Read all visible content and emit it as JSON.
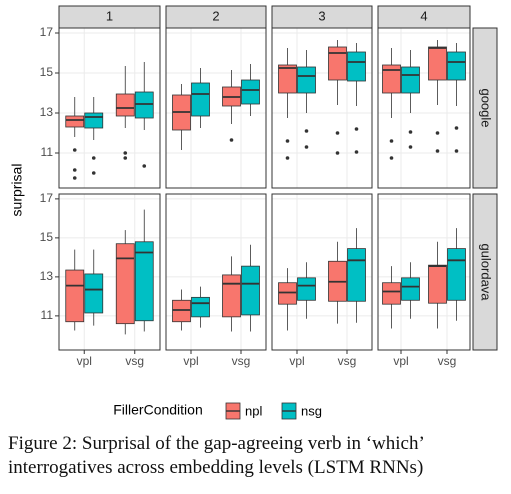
{
  "chart_data": {
    "type": "box",
    "y_label": "surprisal",
    "legend_title": "FillerCondition",
    "caption": "Figure 2: Surprisal of the gap-agreeing verb in ‘which’ interrogatives across embedding levels (LSTM RNNs)",
    "categories": [
      "vpl",
      "vsg"
    ],
    "facet_columns": [
      "1",
      "2",
      "3",
      "4"
    ],
    "facet_rows": [
      "google",
      "gulordava"
    ],
    "ylim": [
      9.25,
      17.25
    ],
    "yticks": [
      11,
      13,
      15,
      17
    ],
    "grid": true,
    "series": [
      {
        "name": "npl",
        "color": "#f8766d",
        "values": [
          [
            [
              {
                "min": 11.8,
                "q1": 12.3,
                "median": 12.65,
                "q3": 12.85,
                "max": 13.8,
                "outliers": [
                  11.15,
                  10.15,
                  9.75
                ]
              },
              {
                "min": 12.25,
                "q1": 12.85,
                "median": 13.25,
                "q3": 13.95,
                "max": 15.35,
                "outliers": [
                  11.0,
                  10.75
                ]
              }
            ],
            [
              {
                "min": 11.15,
                "q1": 12.15,
                "median": 13.05,
                "q3": 13.9,
                "max": 14.45,
                "outliers": []
              },
              {
                "min": 12.45,
                "q1": 13.35,
                "median": 13.8,
                "q3": 14.3,
                "max": 15.15,
                "outliers": [
                  11.65
                ]
              }
            ],
            [
              {
                "min": 12.75,
                "q1": 14.0,
                "median": 15.25,
                "q3": 15.4,
                "max": 16.25,
                "outliers": [
                  11.6,
                  10.75
                ]
              },
              {
                "min": 13.4,
                "q1": 14.65,
                "median": 16.0,
                "q3": 16.3,
                "max": 16.65,
                "outliers": [
                  12.0,
                  11.0
                ]
              }
            ],
            [
              {
                "min": 12.75,
                "q1": 14.0,
                "median": 15.15,
                "q3": 15.4,
                "max": 16.25,
                "outliers": [
                  11.6,
                  10.75
                ]
              },
              {
                "min": 13.4,
                "q1": 14.65,
                "median": 16.25,
                "q3": 16.3,
                "max": 16.65,
                "outliers": [
                  12.0,
                  11.1
                ]
              }
            ]
          ],
          [
            [
              {
                "min": 10.25,
                "q1": 10.7,
                "median": 12.55,
                "q3": 13.35,
                "max": 14.4,
                "outliers": []
              },
              {
                "min": 10.05,
                "q1": 10.6,
                "median": 13.95,
                "q3": 14.7,
                "max": 15.4,
                "outliers": []
              }
            ],
            [
              {
                "min": 10.25,
                "q1": 10.7,
                "median": 11.3,
                "q3": 11.8,
                "max": 12.35,
                "outliers": []
              },
              {
                "min": 10.2,
                "q1": 10.95,
                "median": 12.65,
                "q3": 13.1,
                "max": 14.05,
                "outliers": []
              }
            ],
            [
              {
                "min": 10.25,
                "q1": 11.6,
                "median": 12.2,
                "q3": 12.7,
                "max": 13.45,
                "outliers": []
              },
              {
                "min": 10.6,
                "q1": 11.75,
                "median": 12.75,
                "q3": 13.8,
                "max": 14.8,
                "outliers": []
              }
            ],
            [
              {
                "min": 10.35,
                "q1": 11.6,
                "median": 12.25,
                "q3": 12.7,
                "max": 13.55,
                "outliers": []
              },
              {
                "min": 10.35,
                "q1": 11.65,
                "median": 13.55,
                "q3": 13.6,
                "max": 14.8,
                "outliers": []
              }
            ]
          ]
        ]
      },
      {
        "name": "nsg",
        "color": "#00bfc4",
        "values": [
          [
            [
              {
                "min": 11.65,
                "q1": 12.25,
                "median": 12.8,
                "q3": 13.0,
                "max": 13.8,
                "outliers": [
                  10.75,
                  10.0
                ]
              },
              {
                "min": 12.15,
                "q1": 12.75,
                "median": 13.45,
                "q3": 14.05,
                "max": 15.55,
                "outliers": [
                  10.35
                ]
              }
            ],
            [
              {
                "min": 12.25,
                "q1": 12.85,
                "median": 13.95,
                "q3": 14.5,
                "max": 15.25,
                "outliers": []
              },
              {
                "min": 12.85,
                "q1": 13.45,
                "median": 14.15,
                "q3": 14.65,
                "max": 15.45,
                "outliers": []
              }
            ],
            [
              {
                "min": 13.0,
                "q1": 14.0,
                "median": 14.85,
                "q3": 15.3,
                "max": 16.15,
                "outliers": [
                  12.1,
                  11.3
                ]
              },
              {
                "min": 13.35,
                "q1": 14.6,
                "median": 15.55,
                "q3": 16.05,
                "max": 16.5,
                "outliers": [
                  12.2,
                  11.05
                ]
              }
            ],
            [
              {
                "min": 13.0,
                "q1": 14.0,
                "median": 14.9,
                "q3": 15.3,
                "max": 16.15,
                "outliers": [
                  12.05,
                  11.3
                ]
              },
              {
                "min": 13.35,
                "q1": 14.65,
                "median": 15.55,
                "q3": 16.05,
                "max": 16.5,
                "outliers": [
                  12.25,
                  11.1
                ]
              }
            ]
          ],
          [
            [
              {
                "min": 10.5,
                "q1": 11.15,
                "median": 12.35,
                "q3": 13.15,
                "max": 14.4,
                "outliers": []
              },
              {
                "min": 10.2,
                "q1": 10.75,
                "median": 14.25,
                "q3": 14.8,
                "max": 16.45,
                "outliers": []
              }
            ],
            [
              {
                "min": 10.4,
                "q1": 10.95,
                "median": 11.65,
                "q3": 11.95,
                "max": 12.5,
                "outliers": []
              },
              {
                "min": 10.2,
                "q1": 11.05,
                "median": 12.65,
                "q3": 13.55,
                "max": 14.65,
                "outliers": []
              }
            ],
            [
              {
                "min": 10.85,
                "q1": 11.8,
                "median": 12.55,
                "q3": 12.95,
                "max": 13.75,
                "outliers": []
              },
              {
                "min": 10.65,
                "q1": 11.75,
                "median": 13.85,
                "q3": 14.45,
                "max": 15.5,
                "outliers": []
              }
            ],
            [
              {
                "min": 10.85,
                "q1": 11.8,
                "median": 12.5,
                "q3": 12.95,
                "max": 13.75,
                "outliers": []
              },
              {
                "min": 10.75,
                "q1": 11.8,
                "median": 13.85,
                "q3": 14.45,
                "max": 15.5,
                "outliers": []
              }
            ]
          ]
        ]
      }
    ]
  }
}
